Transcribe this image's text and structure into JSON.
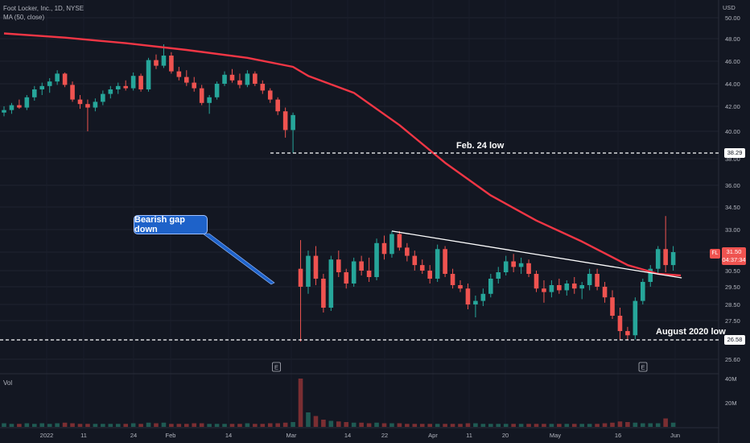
{
  "header": {
    "symbol_line": "Foot Locker, Inc., 1D, NYSE",
    "ma_line": "MA (50, close)",
    "currency": "USD",
    "volume_label": "Vol"
  },
  "annotations": {
    "callout": "Bearish gap down",
    "feb24_label": "Feb. 24 low",
    "aug2020_label": "August 2020 low"
  },
  "price_tags": {
    "level_high": "38.29",
    "level_low": "26.58",
    "ticker": "FL",
    "last_price": "31.50",
    "countdown": "04:37:34"
  },
  "colors": {
    "background": "#131722",
    "up": "#26a69a",
    "down": "#ef5350",
    "ma": "#f23645",
    "trendline": "#ffffff",
    "callout": "#1e62c9"
  },
  "chart_data": {
    "type": "candlestick",
    "y_axis_ticks": [
      "50.00",
      "48.00",
      "46.00",
      "44.00",
      "42.00",
      "40.00",
      "38.00",
      "36.00",
      "34.50",
      "33.00",
      "31.50",
      "30.50",
      "29.50",
      "28.50",
      "27.50",
      "26.50",
      "25.60"
    ],
    "x_axis_ticks": [
      "2022",
      "11",
      "24",
      "Feb",
      "14",
      "Mar",
      "14",
      "22",
      "Apr",
      "11",
      "20",
      "May",
      "16",
      "Jun"
    ],
    "volume_axis_ticks": [
      "40M",
      "20M"
    ],
    "ohlc": [
      [
        41.5,
        42.0,
        41.2,
        41.7
      ],
      [
        41.7,
        42.3,
        41.4,
        42.1
      ],
      [
        42.1,
        42.6,
        41.8,
        41.9
      ],
      [
        41.9,
        43.0,
        41.7,
        42.8
      ],
      [
        42.8,
        43.8,
        42.5,
        43.5
      ],
      [
        43.5,
        44.1,
        43.0,
        43.8
      ],
      [
        43.8,
        44.5,
        43.2,
        44.2
      ],
      [
        44.2,
        45.2,
        43.9,
        44.9
      ],
      [
        44.9,
        45.0,
        43.7,
        43.9
      ],
      [
        43.9,
        44.2,
        42.4,
        42.6
      ],
      [
        42.6,
        43.0,
        41.8,
        42.2
      ],
      [
        42.2,
        42.6,
        40.0,
        41.9
      ],
      [
        41.9,
        42.7,
        41.6,
        42.4
      ],
      [
        42.4,
        43.4,
        42.1,
        43.1
      ],
      [
        43.1,
        43.8,
        42.7,
        43.5
      ],
      [
        43.5,
        44.1,
        43.1,
        43.8
      ],
      [
        43.8,
        44.3,
        43.4,
        43.6
      ],
      [
        43.6,
        45.0,
        43.4,
        44.7
      ],
      [
        44.7,
        44.9,
        43.3,
        43.5
      ],
      [
        43.5,
        46.3,
        43.3,
        46.1
      ],
      [
        46.1,
        46.6,
        45.3,
        45.6
      ],
      [
        45.6,
        47.5,
        45.4,
        46.5
      ],
      [
        46.5,
        46.8,
        44.9,
        45.1
      ],
      [
        45.1,
        45.5,
        44.3,
        44.6
      ],
      [
        44.6,
        45.2,
        43.8,
        44.1
      ],
      [
        44.1,
        44.6,
        43.3,
        43.6
      ],
      [
        43.6,
        43.9,
        42.1,
        42.3
      ],
      [
        42.3,
        43.0,
        41.4,
        42.8
      ],
      [
        42.8,
        44.2,
        42.6,
        44.0
      ],
      [
        44.0,
        45.1,
        43.8,
        44.8
      ],
      [
        44.8,
        45.3,
        44.1,
        44.3
      ],
      [
        44.3,
        44.9,
        43.6,
        43.9
      ],
      [
        43.9,
        45.2,
        43.7,
        44.9
      ],
      [
        44.9,
        45.1,
        43.8,
        44.0
      ],
      [
        44.0,
        44.3,
        43.1,
        43.4
      ],
      [
        43.4,
        43.6,
        42.3,
        42.6
      ],
      [
        42.6,
        42.8,
        41.3,
        41.6
      ],
      [
        41.6,
        41.9,
        39.5,
        40.1
      ],
      [
        40.1,
        41.5,
        38.3,
        41.3
      ],
      [
        30.6,
        32.3,
        26.5,
        29.5
      ],
      [
        29.5,
        31.6,
        29.1,
        31.3
      ],
      [
        31.3,
        31.9,
        29.6,
        30.0
      ],
      [
        30.0,
        30.3,
        28.0,
        28.3
      ],
      [
        28.3,
        31.3,
        28.1,
        31.1
      ],
      [
        31.1,
        31.6,
        30.1,
        30.4
      ],
      [
        30.4,
        30.6,
        29.4,
        29.7
      ],
      [
        29.7,
        31.2,
        29.5,
        31.0
      ],
      [
        31.0,
        31.3,
        30.2,
        30.5
      ],
      [
        30.5,
        31.2,
        29.8,
        30.1
      ],
      [
        30.1,
        32.4,
        29.9,
        32.1
      ],
      [
        32.1,
        32.6,
        31.1,
        31.4
      ],
      [
        31.4,
        32.9,
        31.2,
        32.7
      ],
      [
        32.7,
        32.9,
        31.6,
        31.8
      ],
      [
        31.8,
        32.1,
        31.0,
        31.3
      ],
      [
        31.3,
        31.6,
        30.5,
        30.8
      ],
      [
        30.8,
        31.1,
        30.3,
        30.5
      ],
      [
        30.5,
        30.8,
        29.7,
        30.0
      ],
      [
        30.0,
        32.0,
        29.8,
        31.7
      ],
      [
        31.7,
        31.9,
        30.1,
        30.3
      ],
      [
        30.3,
        30.6,
        29.4,
        29.6
      ],
      [
        29.6,
        29.9,
        29.2,
        29.4
      ],
      [
        29.4,
        29.7,
        28.2,
        28.5
      ],
      [
        28.5,
        29.0,
        27.7,
        28.7
      ],
      [
        28.7,
        29.4,
        28.4,
        29.1
      ],
      [
        29.1,
        30.3,
        28.9,
        30.0
      ],
      [
        30.0,
        30.7,
        29.7,
        30.4
      ],
      [
        30.4,
        31.3,
        30.2,
        31.0
      ],
      [
        31.0,
        31.4,
        30.4,
        30.7
      ],
      [
        30.7,
        31.2,
        30.3,
        30.9
      ],
      [
        30.9,
        31.1,
        30.1,
        30.3
      ],
      [
        30.3,
        30.5,
        29.2,
        29.4
      ],
      [
        29.4,
        29.9,
        28.6,
        29.2
      ],
      [
        29.2,
        29.9,
        28.9,
        29.6
      ],
      [
        29.6,
        30.0,
        29.1,
        29.3
      ],
      [
        29.3,
        29.9,
        29.0,
        29.7
      ],
      [
        29.7,
        30.1,
        29.1,
        29.4
      ],
      [
        29.4,
        29.8,
        28.8,
        29.6
      ],
      [
        29.6,
        30.6,
        29.3,
        30.3
      ],
      [
        30.3,
        30.6,
        29.3,
        29.5
      ],
      [
        29.5,
        29.8,
        28.6,
        28.9
      ],
      [
        28.9,
        29.3,
        27.6,
        27.8
      ],
      [
        27.8,
        28.3,
        26.6,
        27.0
      ],
      [
        27.0,
        27.2,
        26.6,
        26.8
      ],
      [
        26.8,
        28.9,
        26.6,
        28.7
      ],
      [
        28.7,
        30.0,
        28.5,
        29.8
      ],
      [
        29.8,
        30.8,
        29.5,
        30.6
      ],
      [
        30.6,
        31.9,
        30.3,
        31.7
      ],
      [
        31.7,
        33.9,
        30.4,
        30.8
      ],
      [
        30.8,
        31.9,
        30.5,
        31.5
      ]
    ],
    "volume_M": [
      3,
      2.5,
      2.5,
      3,
      2.5,
      3,
      2.5,
      3,
      3.5,
      3,
      2.5,
      2.5,
      2.5,
      2.5,
      2.5,
      2.5,
      2.5,
      3,
      2.5,
      3.5,
      3,
      3.5,
      2.5,
      2.5,
      2.5,
      3,
      3,
      2.5,
      2.5,
      2.5,
      2.5,
      2.5,
      3,
      2.5,
      2.5,
      3,
      3,
      3.5,
      4,
      40,
      12,
      9,
      6,
      5,
      4.5,
      4,
      3.5,
      3.5,
      3,
      3.5,
      3,
      3,
      3,
      2.5,
      2.5,
      2.5,
      2.5,
      2.5,
      2.5,
      2.5,
      2.5,
      3,
      3,
      2.5,
      2.5,
      2.5,
      2.5,
      2.5,
      2.5,
      2.5,
      2.5,
      2.5,
      2.5,
      2.5,
      2.5,
      2.5,
      2.5,
      2.5,
      2.5,
      3,
      3.5,
      4.5,
      4,
      3.5,
      3,
      3,
      3,
      7,
      3.5
    ],
    "ma50": [
      [
        0,
        48.5
      ],
      [
        8,
        48.1
      ],
      [
        16,
        47.6
      ],
      [
        24,
        47.0
      ],
      [
        32,
        46.3
      ],
      [
        38,
        45.5
      ],
      [
        40,
        44.7
      ],
      [
        46,
        43.2
      ],
      [
        52,
        40.5
      ],
      [
        58,
        37.6
      ],
      [
        64,
        35.3
      ],
      [
        70,
        33.6
      ],
      [
        76,
        32.2
      ],
      [
        82,
        30.8
      ],
      [
        86,
        30.3
      ],
      [
        89,
        30.2
      ]
    ],
    "levels": [
      {
        "label": "Feb. 24 low",
        "value": 38.29
      },
      {
        "label": "August 2020 low",
        "value": 26.58
      }
    ],
    "trendline": [
      [
        51,
        32.9
      ],
      [
        87,
        30.2
      ]
    ]
  }
}
